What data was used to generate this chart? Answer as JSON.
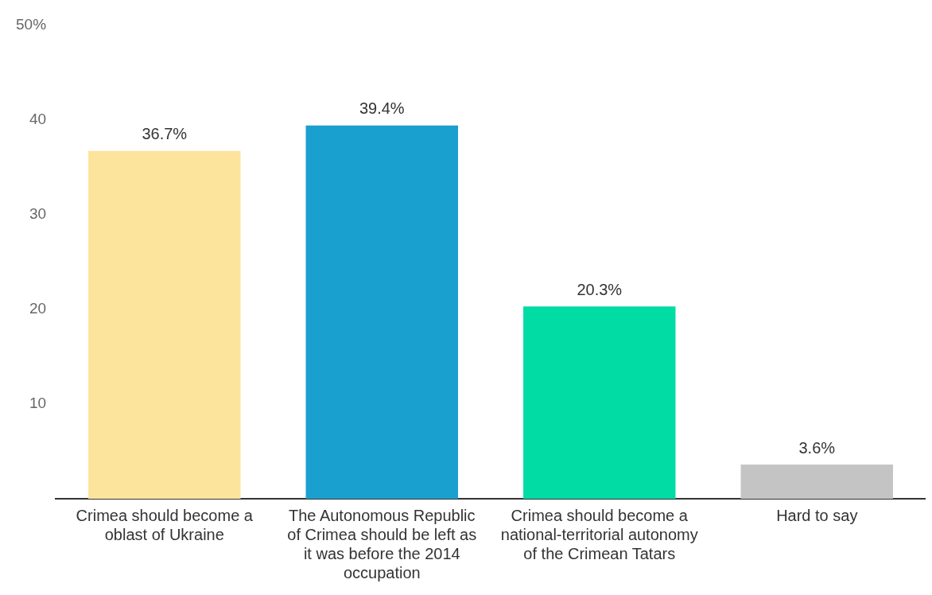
{
  "chart_data": {
    "type": "bar",
    "categories": [
      "Crimea should become a oblast of Ukraine",
      "The Autonomous Republic of Crimea should be left as it was before the 2014 occupation",
      "Crimea should become a national-territorial autonomy of the Crimean Tatars",
      "Hard to say"
    ],
    "values": [
      36.7,
      39.4,
      20.3,
      3.6
    ],
    "colors": [
      "#fde49c",
      "#1aa0ce",
      "#00dca4",
      "#c4c4c4"
    ],
    "value_labels": [
      "36.7%",
      "39.4%",
      "20.3%",
      "3.6%"
    ],
    "ylim": [
      0,
      50
    ],
    "yticks": [
      10,
      20,
      30,
      40,
      {
        "value": 50,
        "label": "50%"
      }
    ],
    "grid": false,
    "legend": false
  }
}
